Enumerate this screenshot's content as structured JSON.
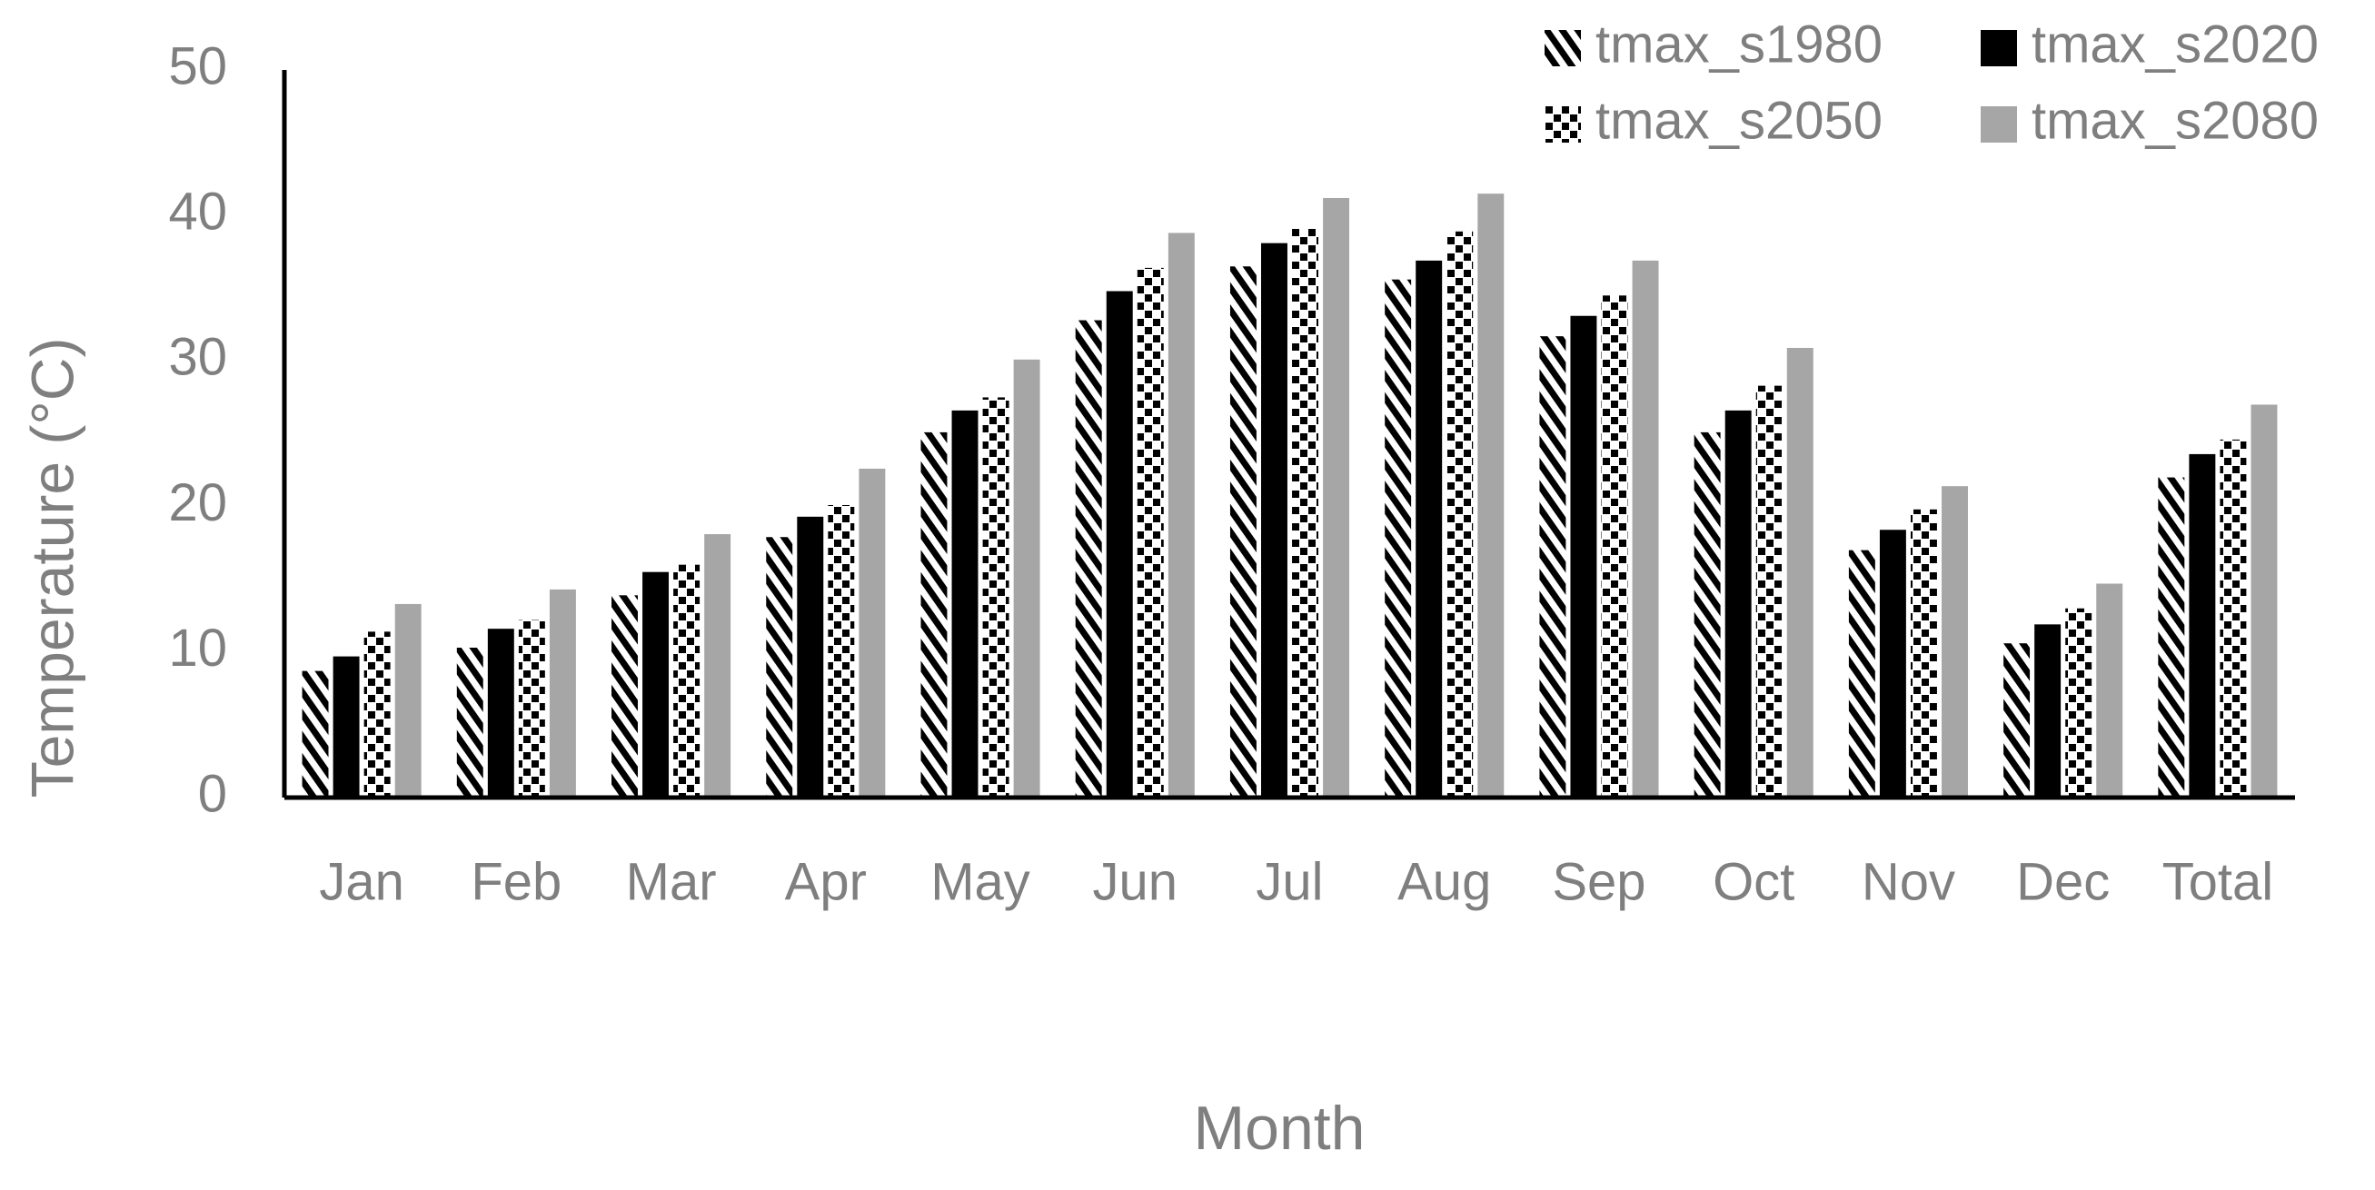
{
  "chart_data": {
    "type": "bar",
    "x_label": "Month",
    "y_label": "Temperature (°C)",
    "categories": [
      "Jan",
      "Feb",
      "Mar",
      "Apr",
      "May",
      "Jun",
      "Jul",
      "Aug",
      "Sep",
      "Oct",
      "Nov",
      "Dec",
      "Total"
    ],
    "series": [
      {
        "name": "tmax_s1980",
        "color": "#000000",
        "pattern": "hatch",
        "values": [
          8.7,
          10.3,
          13.9,
          17.9,
          25.1,
          32.8,
          36.5,
          35.6,
          31.7,
          25.1,
          17.0,
          10.6,
          22.0
        ]
      },
      {
        "name": "tmax_s2020",
        "color": "#000000",
        "pattern": "solid",
        "values": [
          9.7,
          11.6,
          15.5,
          19.3,
          26.6,
          34.8,
          38.1,
          36.9,
          33.1,
          26.6,
          18.4,
          11.9,
          23.6
        ]
      },
      {
        "name": "tmax_s2050",
        "color": "#000000",
        "pattern": "dots",
        "values": [
          11.4,
          12.2,
          16.0,
          20.1,
          27.5,
          36.4,
          39.1,
          38.9,
          34.5,
          28.3,
          19.8,
          13.0,
          24.6
        ]
      },
      {
        "name": "tmax_s2080",
        "color": "#a6a6a6",
        "pattern": "solid",
        "values": [
          13.3,
          14.3,
          18.1,
          22.6,
          30.1,
          38.8,
          41.2,
          41.5,
          36.9,
          30.9,
          21.4,
          14.7,
          27.0
        ]
      }
    ],
    "ylim": [
      0,
      50
    ],
    "yticks": [
      0,
      10,
      20,
      30,
      40,
      50
    ],
    "grid": false,
    "legend": "top-right"
  }
}
